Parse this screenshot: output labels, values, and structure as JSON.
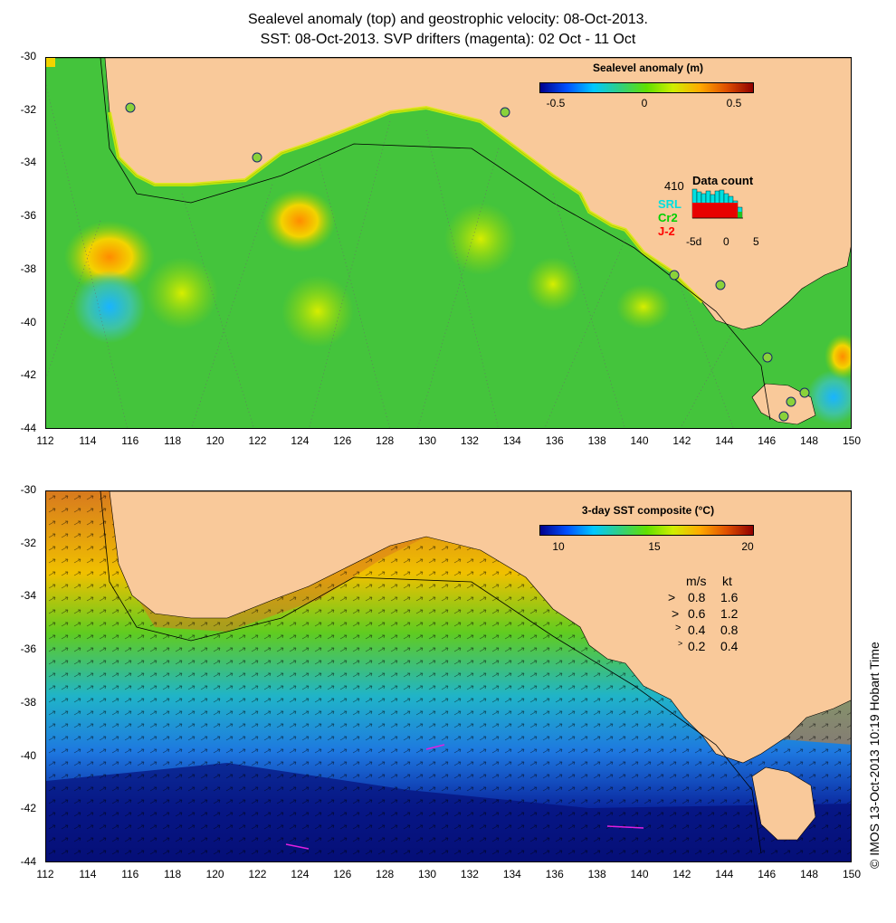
{
  "title": {
    "line1": "Sealevel anomaly (top) and geostrophic velocity: 08-Oct-2013.",
    "line2": "SST: 08-Oct-2013. SVP drifters (magenta): 02 Oct - 11 Oct"
  },
  "axes": {
    "y_ticks": [
      "-30",
      "-32",
      "-34",
      "-36",
      "-38",
      "-40",
      "-42",
      "-44"
    ],
    "x_ticks": [
      "112",
      "114",
      "116",
      "118",
      "120",
      "122",
      "124",
      "126",
      "128",
      "130",
      "132",
      "134",
      "136",
      "138",
      "140",
      "142",
      "144",
      "146",
      "148",
      "150"
    ]
  },
  "top_panel": {
    "colorbar_title": "Sealevel anomaly (m)",
    "colorbar_labels": [
      "-0.5",
      "0",
      "0.5"
    ],
    "data_count": {
      "title": "Data count",
      "count": "410",
      "series": [
        "SRL",
        "Cr2",
        "J-2"
      ],
      "series_colors": [
        "#00e0e0",
        "#00d000",
        "#ff0000"
      ],
      "axis_labels": [
        "-5d",
        "0",
        "5"
      ]
    }
  },
  "bottom_panel": {
    "colorbar_title": "3-day SST composite (°C)",
    "colorbar_labels": [
      "10",
      "15",
      "20"
    ],
    "speed_legend": {
      "header_ms": "m/s",
      "header_kt": "kt",
      "rows": [
        {
          "ms": "0.8",
          "kt": "1.6"
        },
        {
          "ms": "0.6",
          "kt": "1.2"
        },
        {
          "ms": "0.4",
          "kt": "0.8"
        },
        {
          "ms": "0.2",
          "kt": "0.4"
        }
      ]
    }
  },
  "footer_note": "© IMOS 13-Oct-2013 10:19 Hobart Time",
  "colors": {
    "land": "#f9c99a",
    "ocean_sla": "#3ec83a",
    "sst_warm": "#d7781e",
    "sst_cool": "#1e46c8"
  }
}
